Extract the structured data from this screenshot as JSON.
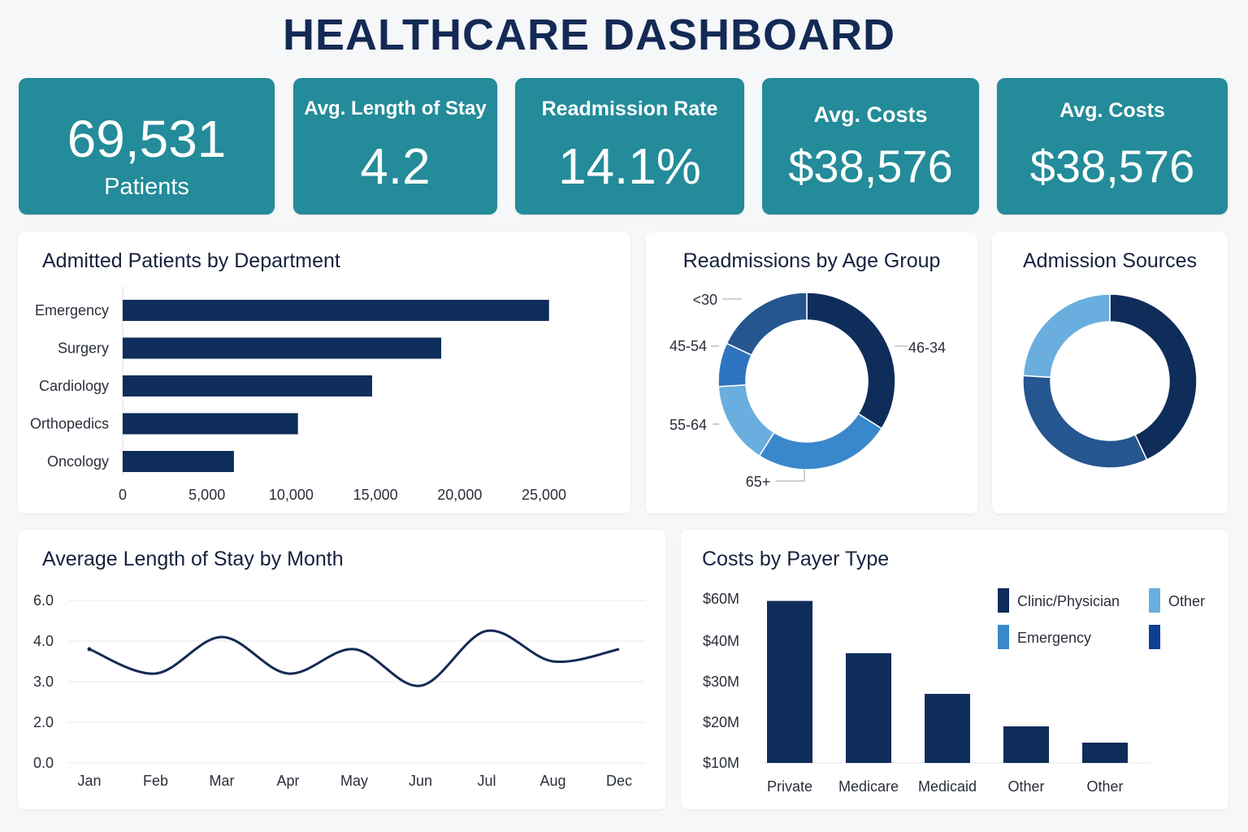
{
  "title": "HEALTHCARE DASHBOARD",
  "kpis": [
    {
      "value": "69,531",
      "label": "Patients"
    },
    {
      "label": "Avg. Length of Stay",
      "value": "4.2"
    },
    {
      "label": "Readmission Rate",
      "value": "14.1%"
    },
    {
      "label": "Avg. Costs",
      "value": "$38,576"
    },
    {
      "label": "Avg. Costs",
      "value": "$38,576"
    }
  ],
  "colors": {
    "kpi_bg": "#238b99",
    "navy": "#0f2d5a",
    "dark_blue": "#25568f",
    "mid_blue": "#3a88cc",
    "light_blue": "#6aaedf",
    "royal_blue": "#0e3f94"
  },
  "chart_data": [
    {
      "type": "bar",
      "orientation": "horizontal",
      "title": "Admitted Patients by Department",
      "categories": [
        "Emergency",
        "Surgery",
        "Cardiology",
        "Orthopedics",
        "Oncology"
      ],
      "values": [
        25300,
        18900,
        14800,
        10400,
        6600
      ],
      "xlim": [
        0,
        27000
      ],
      "xticks": [
        0,
        5000,
        10000,
        15000,
        20000,
        25000
      ],
      "xtick_labels": [
        "0",
        "5,000",
        "10,000",
        "15,000",
        "20,000",
        "25,000"
      ],
      "color": "#0f2d5a"
    },
    {
      "type": "pie",
      "donut": true,
      "title": "Readmissions by Age Group",
      "labels": [
        "46-34",
        "65+",
        "55-64",
        "45-54",
        "<30"
      ],
      "values": [
        34,
        25,
        15,
        8,
        18
      ],
      "colors": [
        "#0f2d5a",
        "#3a88cc",
        "#6aaedf",
        "#2f74c0",
        "#25568f"
      ]
    },
    {
      "type": "pie",
      "donut": true,
      "title": "Admission Sources",
      "values": [
        43,
        33,
        24
      ],
      "colors": [
        "#0f2d5a",
        "#25568f",
        "#6aaedf"
      ]
    },
    {
      "type": "line",
      "title": "Average Length of Stay by Month",
      "x": [
        "Jan",
        "Feb",
        "Mar",
        "Apr",
        "May",
        "Jun",
        "Jul",
        "Aug",
        "Dec"
      ],
      "y": [
        3.8,
        3.2,
        4.2,
        3.2,
        3.8,
        2.9,
        4.5,
        3.5,
        3.8
      ],
      "yticks": [
        0.0,
        2.0,
        3.0,
        4.0,
        6.0
      ],
      "ytick_labels": [
        "0.0",
        "2.0",
        "3.0",
        "4.0",
        "6.0"
      ],
      "grid": true,
      "color": "#142a55"
    },
    {
      "type": "bar",
      "title": "Costs by Payer Type",
      "categories": [
        "Private",
        "Medicare",
        "Medicaid",
        "Other",
        "Other"
      ],
      "values": [
        59,
        37,
        27,
        19,
        15
      ],
      "yticks": [
        10,
        20,
        30,
        40,
        60
      ],
      "ytick_labels": [
        "$10M",
        "$20M",
        "$30M",
        "$40M",
        "$60M"
      ],
      "color": "#0f2d5a",
      "legend": [
        {
          "name": "Clinic/Physician",
          "color": "#0f2d5a"
        },
        {
          "name": "Other",
          "color": "#6aaedf"
        },
        {
          "name": "Emergency",
          "color": "#3a88cc"
        },
        {
          "name": "",
          "color": "#0e3f94"
        }
      ],
      "legend_position": "top-right"
    }
  ]
}
